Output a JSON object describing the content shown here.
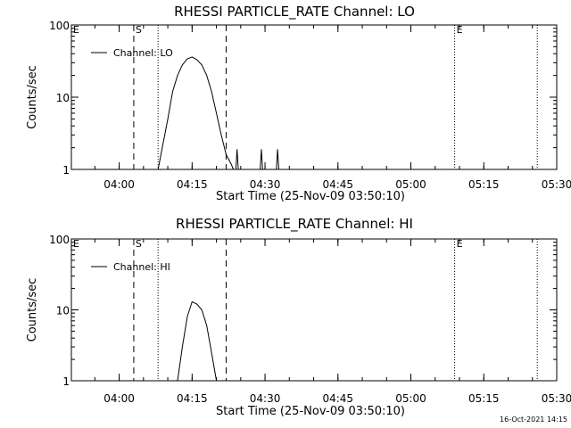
{
  "chart_data": [
    {
      "type": "line",
      "title": "RHESSI PARTICLE_RATE Channel: LO",
      "xlabel": "Start Time (25-Nov-09 03:50:10)",
      "ylabel": "Counts/sec",
      "y_scale": "log",
      "ylim": [
        1,
        100
      ],
      "y_ticks": [
        {
          "v": 1,
          "label": "1"
        },
        {
          "v": 10,
          "label": "10"
        },
        {
          "v": 100,
          "label": "100"
        }
      ],
      "xlim": [
        "03:50:10",
        "05:30:00"
      ],
      "x_ticks": [
        "04:00",
        "04:15",
        "04:30",
        "04:45",
        "05:00",
        "05:15",
        "05:30"
      ],
      "legend": {
        "position": "top-left",
        "entries": [
          "Channel: LO"
        ]
      },
      "markers": [
        {
          "label": "E",
          "time": "03:50:10",
          "style": "none"
        },
        {
          "label": "S",
          "time": "04:03:00",
          "style": "dashed"
        },
        {
          "label": "",
          "time": "04:08:00",
          "style": "dotted"
        },
        {
          "label": "",
          "time": "04:22:00",
          "style": "dashed"
        },
        {
          "label": "E",
          "time": "05:09:00",
          "style": "dotted"
        },
        {
          "label": "",
          "time": "05:26:00",
          "style": "dotted"
        }
      ],
      "series": [
        {
          "name": "Channel: LO",
          "x": [
            "04:08:00",
            "04:10:00",
            "04:11:00",
            "04:12:00",
            "04:13:00",
            "04:14:00",
            "04:15:00",
            "04:16:00",
            "04:17:00",
            "04:18:00",
            "04:19:00",
            "04:20:00",
            "04:21:00",
            "04:22:00",
            "04:23:00",
            "04:23:30"
          ],
          "y": [
            1,
            5,
            12,
            20,
            28,
            34,
            36,
            33,
            28,
            20,
            12,
            6,
            3,
            1.6,
            1.2,
            1
          ]
        },
        {
          "name": "",
          "x": [
            "04:24:00",
            "04:24:15",
            "04:24:30"
          ],
          "y": [
            1,
            1.9,
            1
          ]
        },
        {
          "name": "",
          "x": [
            "04:29:00",
            "04:29:15",
            "04:29:30"
          ],
          "y": [
            1,
            1.9,
            1
          ]
        },
        {
          "name": "",
          "x": [
            "04:32:20",
            "04:32:35",
            "04:32:50"
          ],
          "y": [
            1,
            1.9,
            1
          ]
        }
      ]
    },
    {
      "type": "line",
      "title": "RHESSI PARTICLE_RATE Channel: HI",
      "xlabel": "Start Time (25-Nov-09 03:50:10)",
      "ylabel": "Counts/sec",
      "y_scale": "log",
      "ylim": [
        1,
        100
      ],
      "y_ticks": [
        {
          "v": 1,
          "label": "1"
        },
        {
          "v": 10,
          "label": "10"
        },
        {
          "v": 100,
          "label": "100"
        }
      ],
      "xlim": [
        "03:50:10",
        "05:30:00"
      ],
      "x_ticks": [
        "04:00",
        "04:15",
        "04:30",
        "04:45",
        "05:00",
        "05:15",
        "05:30"
      ],
      "legend": {
        "position": "top-left",
        "entries": [
          "Channel: HI"
        ]
      },
      "markers": [
        {
          "label": "E",
          "time": "03:50:10",
          "style": "none"
        },
        {
          "label": "S",
          "time": "04:03:00",
          "style": "dashed"
        },
        {
          "label": "",
          "time": "04:08:00",
          "style": "dotted"
        },
        {
          "label": "",
          "time": "04:22:00",
          "style": "dashed"
        },
        {
          "label": "E",
          "time": "05:09:00",
          "style": "dotted"
        },
        {
          "label": "",
          "time": "05:26:00",
          "style": "dotted"
        }
      ],
      "series": [
        {
          "name": "Channel: HI",
          "x": [
            "04:12:00",
            "04:13:00",
            "04:14:00",
            "04:15:00",
            "04:16:00",
            "04:17:00",
            "04:18:00",
            "04:19:00",
            "04:20:00"
          ],
          "y": [
            1,
            3,
            8,
            13,
            12,
            10,
            6,
            2.5,
            1
          ]
        }
      ]
    }
  ],
  "timestamp": "16-Oct-2021 14:15"
}
